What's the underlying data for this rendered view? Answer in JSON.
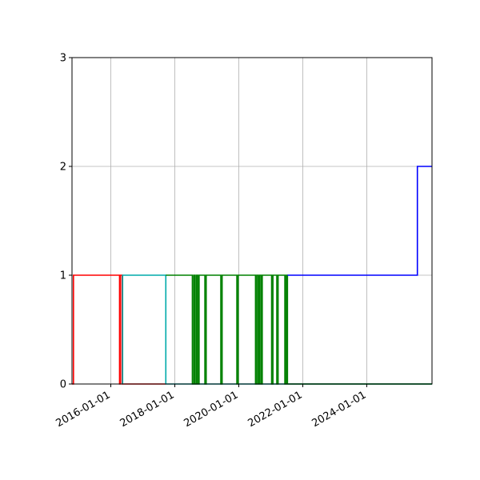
{
  "chart_data": {
    "type": "line",
    "step": true,
    "title": "",
    "xlabel": "",
    "ylabel": "",
    "xlim": [
      "2014-10-15",
      "2026-01-15"
    ],
    "ylim": [
      0,
      3
    ],
    "yticks": [
      0,
      1,
      2,
      3
    ],
    "xticks": [
      "2016-01-01",
      "2018-01-01",
      "2020-01-01",
      "2022-01-01",
      "2024-01-01"
    ],
    "grid": true,
    "legend": "none",
    "series": [
      {
        "color": "#ff0000",
        "points": [
          [
            "2014-10-15",
            0
          ],
          [
            "2014-11-01",
            0
          ],
          [
            "2014-11-01",
            1
          ],
          [
            "2016-04-10",
            1
          ],
          [
            "2016-04-10",
            0
          ],
          [
            "2016-04-20",
            0
          ],
          [
            "2016-04-20",
            1
          ],
          [
            "2016-05-10",
            1
          ],
          [
            "2016-05-10",
            0
          ],
          [
            "2017-09-20",
            0
          ]
        ]
      },
      {
        "color": "#00aaaa",
        "points": [
          [
            "2016-05-15",
            0
          ],
          [
            "2016-05-15",
            1
          ],
          [
            "2017-09-20",
            1
          ],
          [
            "2017-09-20",
            0
          ],
          [
            "2026-01-15",
            0
          ]
        ]
      },
      {
        "color": "#008000",
        "points": [
          [
            "2017-09-20",
            1
          ],
          [
            "2018-07-20",
            1
          ],
          [
            "2018-07-20",
            0
          ],
          [
            "2018-08-05",
            0
          ],
          [
            "2018-08-05",
            1
          ],
          [
            "2018-08-20",
            1
          ],
          [
            "2018-08-20",
            0
          ],
          [
            "2018-09-05",
            0
          ],
          [
            "2018-09-05",
            1
          ],
          [
            "2018-09-20",
            1
          ],
          [
            "2018-09-20",
            0
          ],
          [
            "2018-10-05",
            0
          ],
          [
            "2018-10-05",
            1
          ],
          [
            "2018-12-10",
            1
          ],
          [
            "2018-12-10",
            0
          ],
          [
            "2018-12-25",
            0
          ],
          [
            "2018-12-25",
            1
          ],
          [
            "2019-06-10",
            1
          ],
          [
            "2019-06-10",
            0
          ],
          [
            "2019-06-25",
            0
          ],
          [
            "2019-06-25",
            1
          ],
          [
            "2019-12-10",
            1
          ],
          [
            "2019-12-10",
            0
          ],
          [
            "2019-12-25",
            0
          ],
          [
            "2019-12-25",
            1
          ],
          [
            "2020-07-10",
            1
          ],
          [
            "2020-07-10",
            0
          ],
          [
            "2020-07-25",
            0
          ],
          [
            "2020-07-25",
            1
          ],
          [
            "2020-08-10",
            1
          ],
          [
            "2020-08-10",
            0
          ],
          [
            "2020-08-25",
            0
          ],
          [
            "2020-08-25",
            1
          ],
          [
            "2020-09-10",
            1
          ],
          [
            "2020-09-10",
            0
          ],
          [
            "2020-09-25",
            0
          ],
          [
            "2020-09-25",
            1
          ],
          [
            "2021-01-10",
            1
          ],
          [
            "2021-01-10",
            0
          ],
          [
            "2021-01-25",
            0
          ],
          [
            "2021-01-25",
            1
          ],
          [
            "2021-03-10",
            1
          ],
          [
            "2021-03-10",
            0
          ],
          [
            "2021-03-25",
            0
          ],
          [
            "2021-03-25",
            1
          ],
          [
            "2021-06-10",
            1
          ],
          [
            "2021-06-10",
            0
          ],
          [
            "2021-06-25",
            0
          ],
          [
            "2021-06-25",
            1
          ],
          [
            "2021-07-10",
            1
          ],
          [
            "2021-07-10",
            0
          ],
          [
            "2026-01-15",
            0
          ]
        ]
      },
      {
        "color": "#0000ff",
        "points": [
          [
            "2021-07-10",
            1
          ],
          [
            "2025-08-01",
            1
          ],
          [
            "2025-08-01",
            2
          ],
          [
            "2026-01-15",
            2
          ]
        ]
      }
    ]
  }
}
